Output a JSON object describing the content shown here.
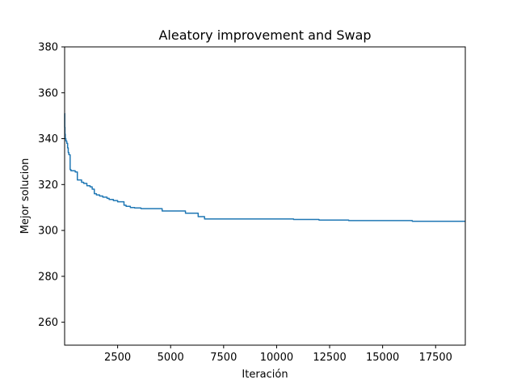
{
  "chart_data": {
    "type": "line",
    "title": "Aleatory improvement and Swap",
    "xlabel": "Iteración",
    "ylabel": "Mejor solucion",
    "xlim": [
      0,
      18900
    ],
    "ylim": [
      250,
      380
    ],
    "xticks": [
      2500,
      5000,
      7500,
      10000,
      12500,
      15000,
      17500
    ],
    "yticks": [
      260,
      280,
      300,
      320,
      340,
      360,
      380
    ],
    "grid": false,
    "line_color": "#1f77b4",
    "series": [
      {
        "step": true,
        "x": [
          0,
          5,
          15,
          30,
          60,
          100,
          140,
          170,
          200,
          260,
          300,
          500,
          600,
          800,
          900,
          1050,
          1200,
          1300,
          1400,
          1500,
          1650,
          1800,
          2000,
          2100,
          2300,
          2500,
          2800,
          2900,
          3100,
          3300,
          3600,
          4600,
          5700,
          6300,
          6600,
          10800,
          12000,
          13400,
          16400,
          18900
        ],
        "y": [
          351,
          345,
          342,
          340,
          339,
          338,
          336,
          334,
          333,
          326.5,
          326,
          325.5,
          322,
          321,
          320.5,
          319.5,
          319,
          318,
          316,
          315.5,
          315,
          314.5,
          314,
          313.5,
          313,
          312.5,
          311,
          310.5,
          310,
          309.8,
          309.5,
          308.5,
          307.5,
          306,
          305,
          304.8,
          304.5,
          304.3,
          304,
          304
        ]
      }
    ]
  }
}
